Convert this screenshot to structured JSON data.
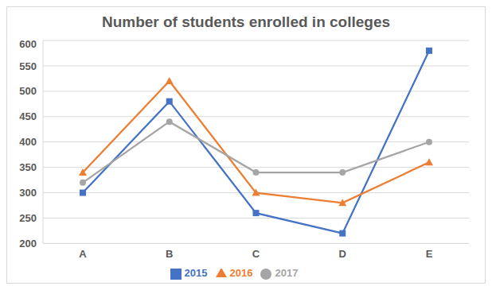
{
  "chart_data": {
    "type": "line",
    "title": "Number of students enrolled in colleges",
    "categories": [
      "A",
      "B",
      "C",
      "D",
      "E"
    ],
    "series": [
      {
        "name": "2015",
        "color": "#4472c4",
        "marker": "square",
        "values": [
          300,
          480,
          260,
          220,
          580
        ]
      },
      {
        "name": "2016",
        "color": "#ed7d31",
        "marker": "triangle",
        "values": [
          340,
          520,
          300,
          280,
          360
        ]
      },
      {
        "name": "2017",
        "color": "#a5a5a5",
        "marker": "circle",
        "values": [
          320,
          440,
          340,
          340,
          400
        ]
      }
    ],
    "ylim": [
      200,
      600
    ],
    "yticks": [
      200,
      250,
      300,
      350,
      400,
      450,
      500,
      550,
      600
    ],
    "grid": true,
    "legend": "bottom"
  }
}
